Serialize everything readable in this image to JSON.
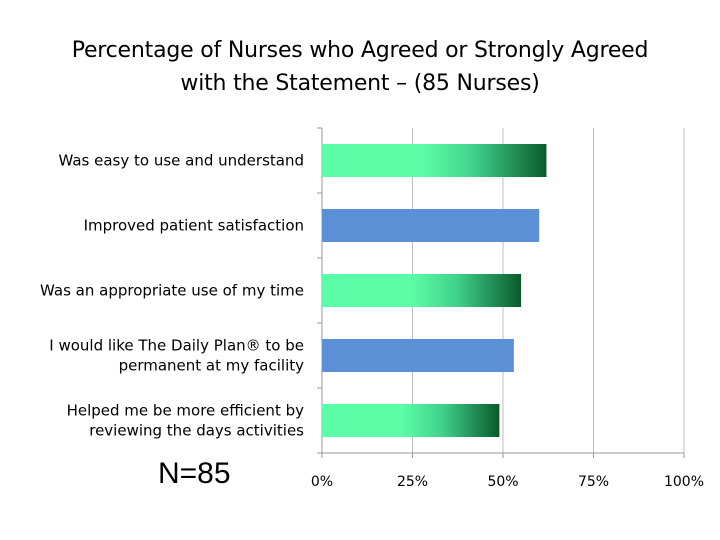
{
  "chart_data": {
    "type": "bar",
    "orientation": "horizontal",
    "title_lines": [
      "Percentage of Nurses who Agreed or Strongly Agreed",
      "with the Statement – (85 Nurses)"
    ],
    "categories": [
      [
        "Was easy to use and understand"
      ],
      [
        "Improved patient satisfaction"
      ],
      [
        "Was an appropriate use of my time"
      ],
      [
        "I would like The Daily Plan® to be",
        "permanent at my facility"
      ],
      [
        "Helped me be more efficient by",
        "reviewing the days activities"
      ]
    ],
    "values": [
      62,
      60,
      55,
      53,
      49
    ],
    "bar_styles": [
      "green-gradient",
      "blue",
      "green-gradient",
      "blue",
      "green-gradient"
    ],
    "xlim": [
      0,
      100
    ],
    "x_ticks": [
      0,
      25,
      50,
      75,
      100
    ],
    "x_tick_labels": [
      "0%",
      "25%",
      "50%",
      "75%",
      "100%"
    ],
    "grid": true,
    "annotation": "N=85",
    "colors": {
      "blue": "#5b8fd6",
      "green_light": "#5cfda7",
      "green_mid": "#3fd18b",
      "green_dark": "#0a5a2a",
      "grid": "#bfbfbf",
      "axis": "#9a9a9a"
    }
  }
}
